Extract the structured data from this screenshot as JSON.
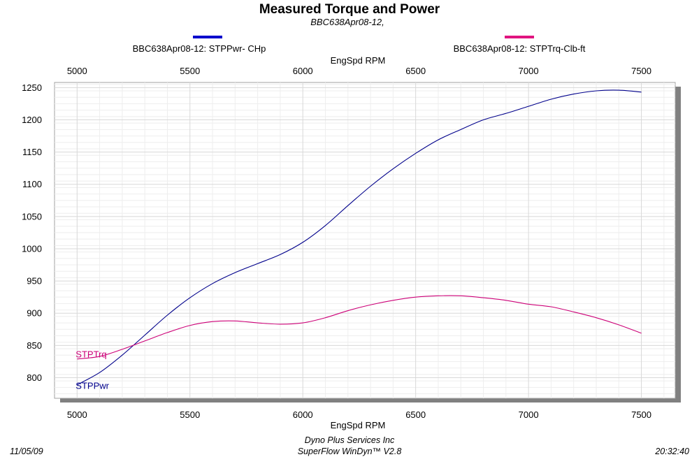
{
  "header": {
    "title": "Measured Torque and Power",
    "subtitle": "BBC638Apr08-12,"
  },
  "legend": [
    {
      "label": "BBC638Apr08-12: STPPwr- CHp",
      "color": "#0000cc"
    },
    {
      "label": "BBC638Apr08-12: STPTrq-Clb-ft",
      "color": "#e0147f"
    }
  ],
  "footer": {
    "date": "11/05/09",
    "company": "Dyno Plus Services Inc",
    "software": "SuperFlow WinDyn™ V2.8",
    "time": "20:32:40"
  },
  "chart_data": {
    "type": "line",
    "title": "Measured Torque and Power",
    "subtitle": "BBC638Apr08-12,",
    "xlabel": "EngSpd  RPM",
    "ylabel": "",
    "xlim": [
      4900,
      7650
    ],
    "ylim": [
      768,
      1258
    ],
    "xticks": [
      5000,
      5500,
      6000,
      6500,
      7000,
      7500
    ],
    "yticks": [
      800,
      850,
      900,
      950,
      1000,
      1050,
      1100,
      1150,
      1200,
      1250
    ],
    "grid": true,
    "legend_position": "top",
    "series": [
      {
        "name": "BBC638Apr08-12: STPPwr- CHp",
        "label": "STPPwr",
        "color": "#00008b",
        "x": [
          5000,
          5100,
          5200,
          5300,
          5400,
          5500,
          5600,
          5700,
          5800,
          5900,
          6000,
          6100,
          6200,
          6300,
          6400,
          6500,
          6600,
          6700,
          6800,
          6900,
          7000,
          7100,
          7200,
          7300,
          7400,
          7500
        ],
        "y": [
          789,
          808,
          835,
          866,
          897,
          924,
          946,
          963,
          977,
          991,
          1010,
          1036,
          1067,
          1097,
          1124,
          1148,
          1169,
          1185,
          1200,
          1210,
          1221,
          1232,
          1240,
          1245,
          1246,
          1243
        ]
      },
      {
        "name": "BBC638Apr08-12: STPTrq-Clb-ft",
        "label": "STPTrq",
        "color": "#cc0077",
        "x": [
          5000,
          5100,
          5200,
          5300,
          5400,
          5500,
          5600,
          5700,
          5800,
          5900,
          6000,
          6100,
          6200,
          6300,
          6400,
          6500,
          6600,
          6700,
          6800,
          6900,
          7000,
          7100,
          7200,
          7300,
          7400,
          7500
        ],
        "y": [
          829,
          833,
          844,
          857,
          870,
          881,
          887,
          888,
          885,
          883,
          885,
          893,
          904,
          913,
          920,
          925,
          927,
          927,
          924,
          920,
          914,
          910,
          902,
          893,
          882,
          869
        ]
      }
    ]
  }
}
